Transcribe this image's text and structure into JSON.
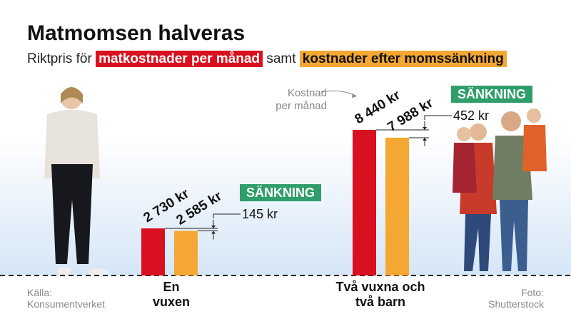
{
  "chart_data": {
    "type": "bar",
    "title": "Matmomsen halveras",
    "subtitle_prefix": "Riktpris för",
    "subtitle_joiner": "samt",
    "categories": [
      "En vuxen",
      "Två vuxna och två barn"
    ],
    "series": [
      {
        "name": "matkostnader per månad",
        "color": "#d9101f",
        "values": [
          2730,
          8440
        ],
        "value_labels": [
          "2 730 kr",
          "8 440 kr"
        ]
      },
      {
        "name": "kostnader efter momssänkning",
        "color": "#f4a733",
        "values": [
          2585,
          7988
        ],
        "value_labels": [
          "2 585 kr",
          "7 988 kr"
        ]
      }
    ],
    "reductions": {
      "label": "SÄNKNING",
      "color": "#2f9e6a",
      "values": [
        145,
        452
      ],
      "value_labels": [
        "145 kr",
        "452 kr"
      ]
    },
    "annotation": "Kostnad per månad",
    "source": "Källa: Konsumentverket",
    "credit": "Foto: Shutterstock",
    "ylim": [
      0,
      12000
    ]
  }
}
